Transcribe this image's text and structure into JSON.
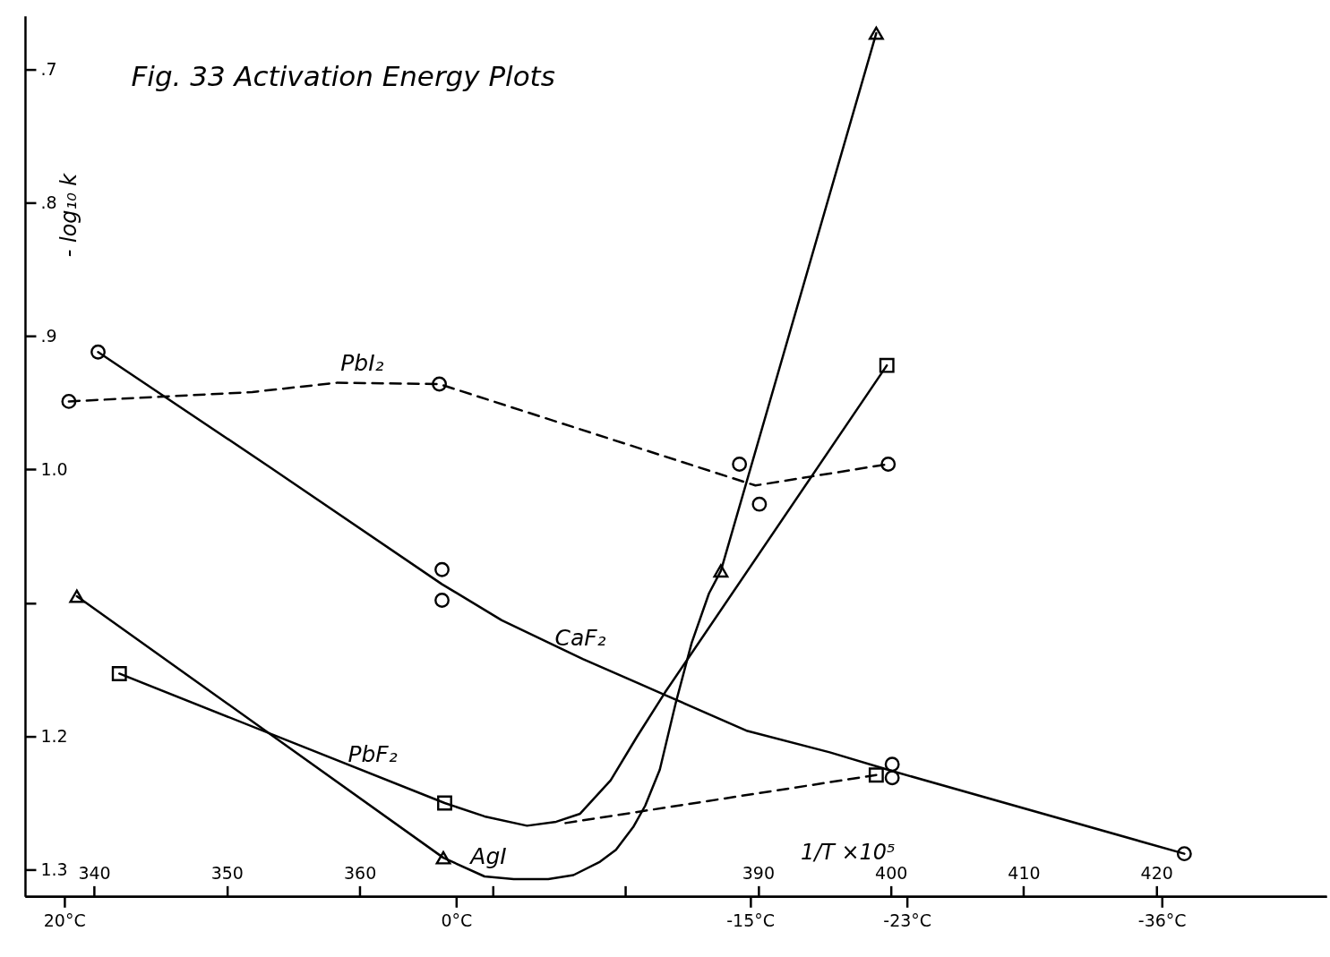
{
  "chart_data": {
    "type": "line",
    "title": "Fig. 33 Activation Energy Plots",
    "ylabel": "- log₁₀ k",
    "xlabel": "1/T ×10⁵",
    "xlim": [
      334.8,
      432.8
    ],
    "xticks": [
      340,
      350,
      360,
      {
        "value": 370,
        "label": null
      },
      {
        "value": 380,
        "label": null
      },
      390,
      400,
      410,
      420
    ],
    "x2lim": [
      22.0,
      -44.4
    ],
    "x2ticks": [
      {
        "value": 20,
        "label": "20°C"
      },
      {
        "value": 0,
        "label": "0°C"
      },
      {
        "value": -15,
        "label": "-15°C"
      },
      {
        "value": -23,
        "label": "-23°C"
      },
      {
        "value": -36,
        "label": "-36°C"
      }
    ],
    "ylim": [
      1.32,
      0.66
    ],
    "yticks": [
      {
        "value": 0.7,
        "label": ".7"
      },
      {
        "value": 0.8,
        "label": ".8"
      },
      {
        "value": 0.9,
        "label": ".9"
      },
      {
        "value": 1.0,
        "label": "1.0"
      },
      {
        "value": 1.1,
        "label": null
      },
      {
        "value": 1.2,
        "label": "1.2"
      },
      {
        "value": 1.3,
        "label": "1.3"
      }
    ],
    "series": [
      {
        "name": "CaF₂",
        "color": "#000000",
        "line_style": "solid",
        "x": [
          340.3,
          353.2,
          366.2,
          370.7,
          376.8,
          383.0,
          389.2,
          395.4,
          400.1,
          422.1
        ],
        "values": [
          0.912,
          0.998,
          1.086,
          1.113,
          1.142,
          1.169,
          1.196,
          1.212,
          1.226,
          1.288
        ]
      },
      {
        "type": "scatter",
        "color": "#000000",
        "marker": "circle",
        "x": [
          340.3,
          366.2,
          366.2,
          400.1,
          400.1,
          422.1
        ],
        "values": [
          0.912,
          1.075,
          1.098,
          1.221,
          1.231,
          1.288
        ]
      },
      {
        "name": "PbI₂",
        "color": "#000000",
        "line_style": "dashed",
        "x": [
          338.1,
          351.9,
          358.3,
          366.0,
          389.8,
          399.8
        ],
        "values": [
          0.949,
          0.942,
          0.935,
          0.936,
          1.012,
          0.996
        ]
      },
      {
        "type": "scatter",
        "color": "#000000",
        "marker": "circle",
        "x": [
          338.1,
          366.0,
          388.6,
          390.1,
          399.8
        ],
        "values": [
          0.949,
          0.936,
          0.996,
          1.026,
          0.996
        ]
      },
      {
        "name": "PbF₂",
        "color": "#000000",
        "line_style": "solid",
        "x": [
          341.9,
          366.4,
          369.4,
          372.6,
          374.8,
          376.6,
          378.9,
          380.9,
          383.0,
          399.7
        ],
        "values": [
          1.153,
          1.25,
          1.26,
          1.267,
          1.264,
          1.258,
          1.233,
          1.2,
          1.167,
          0.922
        ]
      },
      {
        "color": "#000000",
        "line_style": "dashed",
        "x": [
          375.5,
          398.9
        ],
        "values": [
          1.265,
          1.229
        ]
      },
      {
        "type": "scatter",
        "color": "#000000",
        "marker": "square",
        "x": [
          341.9,
          366.4,
          399.7,
          398.9
        ],
        "values": [
          1.153,
          1.25,
          0.922,
          1.229
        ]
      },
      {
        "name": "AgI",
        "color": "#000000",
        "line_style": "solid",
        "x": [
          338.7,
          366.3,
          369.4,
          371.6,
          374.2,
          376.1,
          378.1,
          379.3,
          380.6,
          381.5,
          382.6,
          383.8,
          385.0,
          386.3,
          387.2,
          398.9
        ],
        "values": [
          1.095,
          1.291,
          1.305,
          1.307,
          1.307,
          1.304,
          1.294,
          1.285,
          1.268,
          1.252,
          1.225,
          1.175,
          1.13,
          1.093,
          1.076,
          0.673
        ]
      },
      {
        "type": "scatter",
        "color": "#000000",
        "marker": "triangle",
        "x": [
          338.7,
          366.3,
          387.2,
          398.9
        ],
        "values": [
          1.095,
          1.291,
          1.076,
          0.673
        ]
      }
    ]
  }
}
